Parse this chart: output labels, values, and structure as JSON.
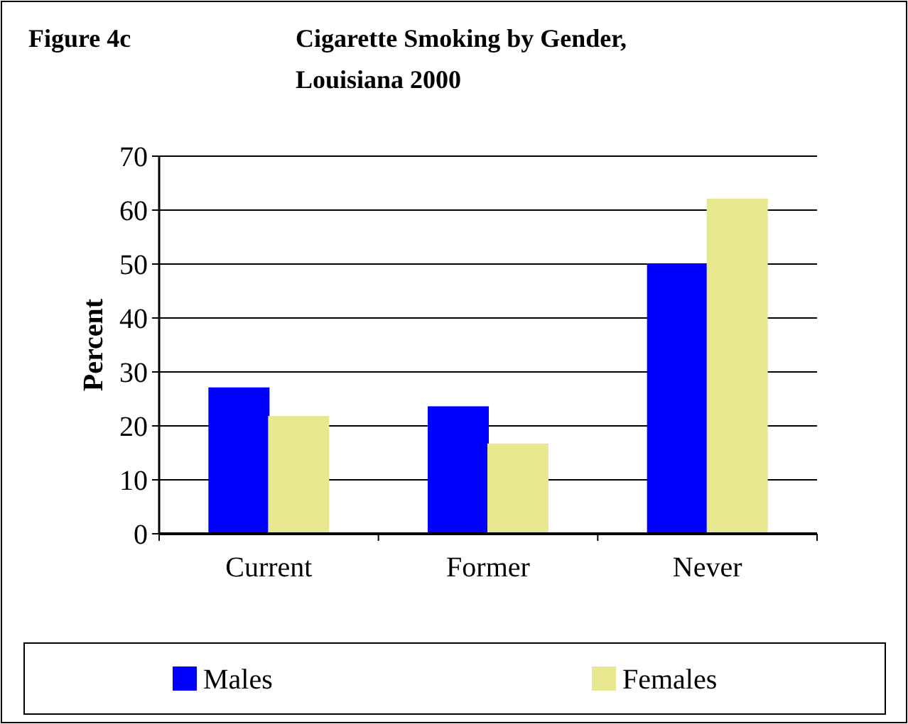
{
  "chart_data": {
    "type": "bar",
    "title": "Cigarette Smoking by Gender,\nLouisiana 2000",
    "ylabel": "Percent",
    "annotations": [
      "Figure 4c"
    ],
    "categories": [
      "Current",
      "Former",
      "Never"
    ],
    "series": [
      {
        "name": "Males",
        "color": "#0000ff",
        "values": [
          27,
          23.5,
          50
        ]
      },
      {
        "name": "Females",
        "color": "#e8e890",
        "values": [
          21.7,
          16.6,
          62
        ]
      }
    ],
    "ylim": [
      0,
      70
    ],
    "yticks": [
      0,
      10,
      20,
      30,
      40,
      50,
      60,
      70
    ],
    "grid": "y",
    "legend": "bottom"
  }
}
